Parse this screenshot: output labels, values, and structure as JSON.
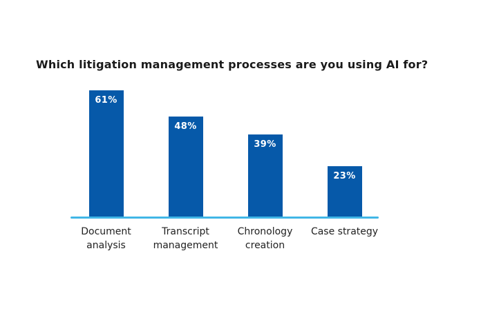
{
  "chart_data": {
    "type": "bar",
    "title": "Which litigation management processes are you using AI for?",
    "categories": [
      "Document analysis",
      "Transcript management",
      "Chronology creation",
      "Case strategy"
    ],
    "values": [
      61,
      48,
      39,
      23
    ],
    "value_labels": [
      "61%",
      "48%",
      "39%",
      "23%"
    ],
    "unit": "%",
    "xlabel": "",
    "ylabel": "",
    "ylim": [
      0,
      65
    ],
    "grid": false,
    "legend": false,
    "orientation": "vertical",
    "colors": {
      "bar_fill": "#0659a9",
      "bar_value_text": "#ffffff",
      "axis_line": "#41b6e6",
      "title_text": "#1a1a1a",
      "category_text": "#212121",
      "background": "#ffffff"
    }
  }
}
